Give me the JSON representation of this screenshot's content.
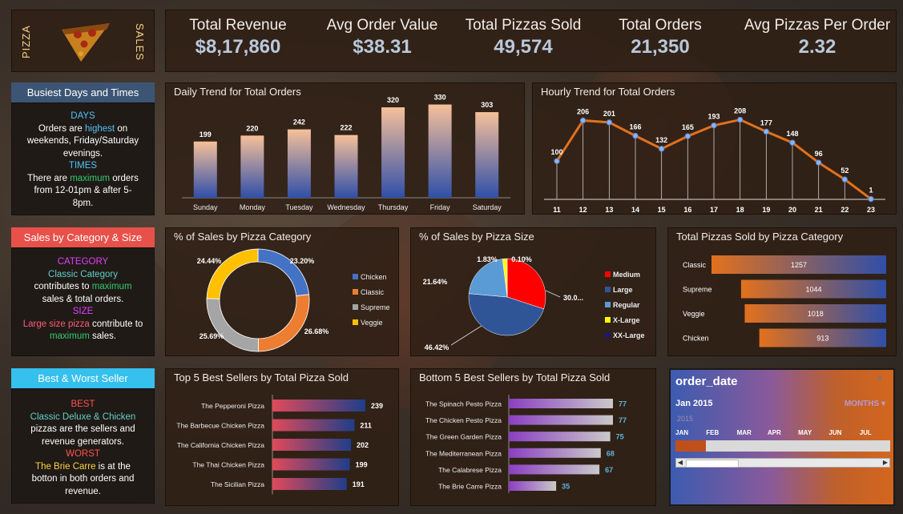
{
  "logo": {
    "left_text": "PIZZA",
    "right_text": "SALES"
  },
  "kpis": [
    {
      "label": "Total Revenue",
      "value": "$8,17,860"
    },
    {
      "label": "Avg Order Value",
      "value": "$38.31"
    },
    {
      "label": "Total Pizzas Sold",
      "value": "49,574"
    },
    {
      "label": "Total Orders",
      "value": "21,350"
    },
    {
      "label": "Avg Pizzas Per Order",
      "value": "2.32"
    }
  ],
  "busiest": {
    "title": "Busiest Days and Times",
    "days_head": "DAYS",
    "days_line1a": "Orders are ",
    "days_line1b": "highest",
    "days_line1c": " on",
    "days_line2": "weekends, Friday/Saturday",
    "days_line3": "evenings.",
    "times_head": "TIMES",
    "times_line1a": "There are ",
    "times_line1b": "maximum",
    "times_line1c": " orders",
    "times_line2": "from 12-01pm & after 5-",
    "times_line3": "8pm."
  },
  "category_size": {
    "title": "Sales by Category & Size",
    "cat_head": "CATEGORY",
    "cat_line1": "Classic Category",
    "cat_line2a": "contributes to ",
    "cat_line2b": "maximum",
    "cat_line3": "sales & total orders.",
    "size_head": "SIZE",
    "size_line1": "Large size pizza",
    "size_line1b": " contribute to",
    "size_line2a": "maximum",
    "size_line2b": " sales."
  },
  "best_worst": {
    "title": "Best & Worst Seller",
    "best_head": "BEST",
    "best_line1": "Classic Deluxe & Chicken",
    "best_line2": "pizzas are the sellers and",
    "best_line3": "revenue generators.",
    "worst_head": "WORST",
    "worst_line1a": "The Brie Carre",
    "worst_line1b": " is at the",
    "worst_line2": "botton in both orders and",
    "worst_line3": "revenue."
  },
  "slicer": {
    "title": "order_date",
    "period": "Jan 2015",
    "level": "MONTHS",
    "year": "2015",
    "months": [
      "JAN",
      "FEB",
      "MAR",
      "APR",
      "MAY",
      "JUN",
      "JUL"
    ],
    "selected_fraction": 0.14
  },
  "colors": {
    "accent_orange": "#e2711d",
    "line": "#e2711d",
    "point": "#8ab4f8"
  },
  "chart_data": [
    {
      "id": "daily",
      "type": "bar",
      "title": "Daily Trend for Total Orders",
      "categories": [
        "Sunday",
        "Monday",
        "Tuesday",
        "Wednesday",
        "Thursday",
        "Friday",
        "Saturday"
      ],
      "values": [
        199,
        220,
        242,
        222,
        320,
        330,
        303
      ],
      "ylim": [
        0,
        340
      ]
    },
    {
      "id": "hourly",
      "type": "line",
      "title": "Hourly Trend for Total Orders",
      "x": [
        "11",
        "12",
        "13",
        "14",
        "15",
        "16",
        "17",
        "18",
        "19",
        "20",
        "21",
        "22",
        "23"
      ],
      "values": [
        100,
        206,
        201,
        166,
        132,
        165,
        193,
        208,
        177,
        148,
        96,
        52,
        1
      ],
      "ylim": [
        0,
        230
      ]
    },
    {
      "id": "category_pct",
      "type": "pie",
      "title": "% of Sales by Pizza Category",
      "donut": true,
      "categories": [
        "Chicken",
        "Classic",
        "Supreme",
        "Veggie"
      ],
      "values": [
        23.2,
        26.68,
        25.69,
        24.44
      ],
      "labels": [
        "23.20%",
        "26.68%",
        "25.69%",
        "24.44%"
      ],
      "colors": [
        "#4472c4",
        "#ed7d31",
        "#a5a5a5",
        "#ffc000"
      ]
    },
    {
      "id": "size_pct",
      "type": "pie",
      "title": "% of Sales by Pizza Size",
      "categories": [
        "Medium",
        "Large",
        "Regular",
        "X-Large",
        "XX-Large"
      ],
      "values": [
        30.0,
        46.42,
        21.64,
        1.83,
        0.1
      ],
      "labels": [
        "30.0...",
        "46.42%",
        "21.64%",
        "1.83%",
        "0.10%"
      ],
      "colors": [
        "#ff0000",
        "#2f5597",
        "#5b9bd5",
        "#ffff00",
        "#1a1a6e"
      ]
    },
    {
      "id": "category_qty",
      "type": "bar",
      "orientation": "horizontal",
      "title": "Total Pizzas Sold by Pizza Category",
      "categories": [
        "Classic",
        "Supreme",
        "Veggie",
        "Chicken"
      ],
      "values": [
        1257,
        1044,
        1018,
        913
      ],
      "xlim": [
        0,
        1257
      ]
    },
    {
      "id": "top5",
      "type": "bar",
      "orientation": "horizontal",
      "title": "Top 5 Best Sellers by Total Pizza Sold",
      "categories": [
        "The Pepperoni Pizza",
        "The Barbecue Chicken Pizza",
        "The California Chicken Pizza",
        "The Thai Chicken Pizza",
        "The Sicilian Pizza"
      ],
      "values": [
        239,
        211,
        202,
        199,
        191
      ],
      "xlim": [
        0,
        239
      ]
    },
    {
      "id": "bottom5",
      "type": "bar",
      "orientation": "horizontal",
      "title": "Bottom 5 Best Sellers by Total Pizza Sold",
      "categories": [
        "The Spinach Pesto Pizza",
        "The Chicken Pesto Pizza",
        "The Green Garden Pizza",
        "The Mediterranean Pizza",
        "The Calabrese Pizza",
        "The Brie Carre Pizza"
      ],
      "values": [
        77,
        77,
        75,
        68,
        67,
        35
      ],
      "xlim": [
        0,
        77
      ]
    }
  ]
}
